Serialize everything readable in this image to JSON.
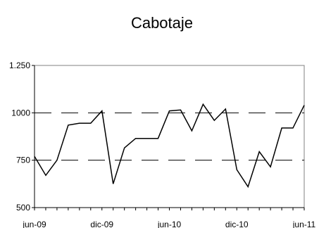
{
  "chart_data": {
    "type": "line",
    "title": "Cabotaje",
    "xlabel": "",
    "ylabel": "",
    "x_tick_labels": [
      "jun-09",
      "dic-09",
      "jun-10",
      "dic-10",
      "jun-11"
    ],
    "y_ticks": [
      500,
      750,
      1000,
      1250
    ],
    "y_tick_labels": [
      "500",
      "750",
      "1000",
      "1.250"
    ],
    "ylim": [
      500,
      1250
    ],
    "grid": "dashed horizontal lines at 750 and 1000",
    "series": [
      {
        "values": [
          770,
          670,
          750,
          935,
          945,
          945,
          1010,
          625,
          815,
          865,
          865,
          865,
          1010,
          1015,
          905,
          1045,
          960,
          1020,
          700,
          610,
          795,
          715,
          920,
          920,
          1040
        ]
      }
    ],
    "colors": {
      "line": "#000000",
      "grid": "#000000",
      "axis": "#808080"
    }
  }
}
